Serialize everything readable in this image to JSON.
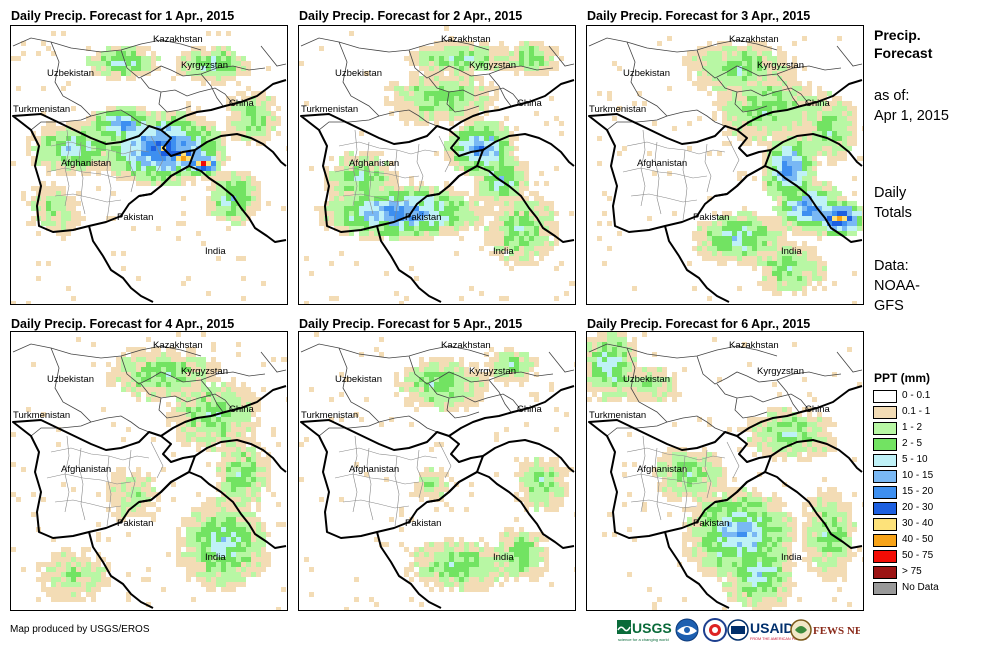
{
  "panels": [
    {
      "title": "Daily Precip. Forecast for 1 Apr., 2015",
      "day": 1
    },
    {
      "title": "Daily Precip. Forecast for 2 Apr., 2015",
      "day": 2
    },
    {
      "title": "Daily Precip. Forecast for 3 Apr., 2015",
      "day": 3
    },
    {
      "title": "Daily Precip. Forecast for 4 Apr., 2015",
      "day": 4
    },
    {
      "title": "Daily Precip. Forecast for 5 Apr., 2015",
      "day": 5
    },
    {
      "title": "Daily Precip. Forecast for 6 Apr., 2015",
      "day": 6
    }
  ],
  "country_labels": {
    "kazakhstan": "Kazakhstan",
    "uzbekistan": "Uzbekistan",
    "kyrgyzstan": "Kyrgyzstan",
    "turkmenistan": "Turkmenistan",
    "china": "China",
    "afghanistan": "Afghanistan",
    "pakistan": "Pakistan",
    "india": "India"
  },
  "sidebar": {
    "title_line1": "Precip.",
    "title_line2": "Forecast",
    "asof_line1": "as of:",
    "asof_line2": "Apr 1, 2015",
    "daily_line1": "Daily",
    "daily_line2": "Totals",
    "data_line1": "Data:",
    "data_line2": "NOAA-",
    "data_line3": "GFS"
  },
  "legend": {
    "title": "PPT (mm)",
    "items": [
      {
        "label": "0 - 0.1",
        "color": "#ffffff"
      },
      {
        "label": "0.1 - 1",
        "color": "#f3dcb5"
      },
      {
        "label": "1 - 2",
        "color": "#b8f7a4"
      },
      {
        "label": "2 - 5",
        "color": "#72e362"
      },
      {
        "label": "5 - 10",
        "color": "#bff1f7"
      },
      {
        "label": "10 - 15",
        "color": "#79b8f4"
      },
      {
        "label": "15 - 20",
        "color": "#3d8ff0"
      },
      {
        "label": "20 - 30",
        "color": "#1c5fe0"
      },
      {
        "label": "30 - 40",
        "color": "#fde27a"
      },
      {
        "label": "40 - 50",
        "color": "#f7a317"
      },
      {
        "label": "50 - 75",
        "color": "#f20c05"
      },
      {
        "label": "> 75",
        "color": "#9c1414"
      },
      {
        "label": "No Data",
        "color": "#999999"
      }
    ]
  },
  "credit": "Map produced by USGS/EROS",
  "logos": {
    "usgs": "USGS",
    "usgs_tagline": "science for a changing world",
    "usaid": "USAID",
    "usaid_tagline": "FROM THE AMERICAN PEOPLE",
    "fewsnet": "FEWS NET"
  }
}
